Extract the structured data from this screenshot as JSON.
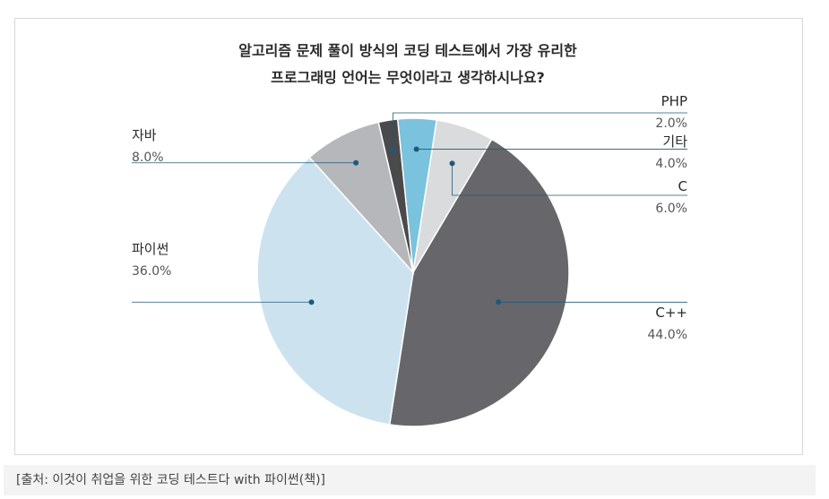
{
  "chart_data": {
    "type": "pie",
    "title_lines": [
      "알고리즘 문제 풀이 방식의 코딩 테스트에서 가장 유리한",
      "프로그래밍 언어는 무엇이라고 생각하시나요?"
    ],
    "slices": [
      {
        "label": "PHP",
        "value": 2.0,
        "display": "2.0%",
        "color": "#4a4a4c"
      },
      {
        "label": "기타",
        "value": 4.0,
        "display": "4.0%",
        "color": "#7ac2dd"
      },
      {
        "label": "C",
        "value": 6.0,
        "display": "6.0%",
        "color": "#dadbdc"
      },
      {
        "label": "C++",
        "value": 44.0,
        "display": "44.0%",
        "color": "#67676b"
      },
      {
        "label": "파이썬",
        "value": 36.0,
        "display": "36.0%",
        "color": "#cce3ef"
      },
      {
        "label": "자바",
        "value": 8.0,
        "display": "8.0%",
        "color": "#b5b7ba"
      }
    ],
    "leader_color": "#1e5a78"
  },
  "caption": "[출처: 이것이 취업을 위한 코딩 테스트다 with 파이썬(책)]"
}
